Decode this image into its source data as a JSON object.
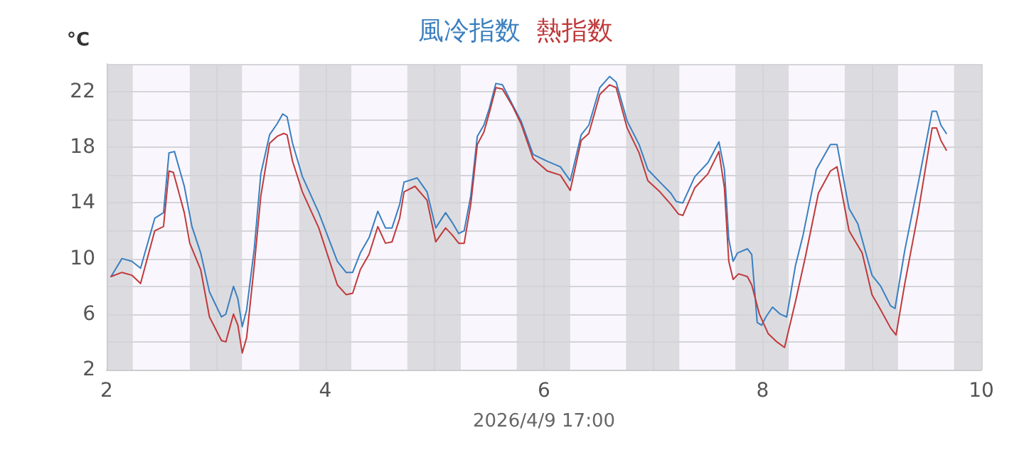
{
  "chart_data": {
    "type": "line",
    "ylabel": "°C",
    "xlabel": "2026/4/9 17:00",
    "legend": "top",
    "grid": true,
    "marker": "none",
    "line_style": "solid",
    "xlim": [
      2,
      10
    ],
    "xticks": [
      2,
      {
        "value": 3,
        "label": null
      },
      4,
      {
        "value": 5,
        "label": null
      },
      6,
      {
        "value": 7,
        "label": null
      },
      8,
      {
        "value": 9,
        "label": null
      },
      10
    ],
    "ylim": [
      2,
      24
    ],
    "yticks": [
      2,
      {
        "value": 4,
        "label": null
      },
      6,
      {
        "value": 8,
        "label": null
      },
      10,
      {
        "value": 12,
        "label": null
      },
      14,
      {
        "value": 16,
        "label": null
      },
      18,
      {
        "value": 20,
        "label": null
      },
      22,
      {
        "value": 24,
        "label": null
      }
    ],
    "bands": [
      {
        "axis": "x",
        "from": 2,
        "to": 2.24,
        "color": "#dcdce0"
      },
      {
        "axis": "x",
        "from": 2.24,
        "to": 2.76,
        "color": "#f9f7fd"
      },
      {
        "axis": "x",
        "from": 2.76,
        "to": 3.24,
        "color": "#dcdce0"
      },
      {
        "axis": "x",
        "from": 3.24,
        "to": 3.76,
        "color": "#f9f7fd"
      },
      {
        "axis": "x",
        "from": 3.76,
        "to": 4.24,
        "color": "#dcdce0"
      },
      {
        "axis": "x",
        "from": 4.24,
        "to": 4.75,
        "color": "#f9f7fd"
      },
      {
        "axis": "x",
        "from": 4.75,
        "to": 5.24,
        "color": "#dcdce0"
      },
      {
        "axis": "x",
        "from": 5.24,
        "to": 5.75,
        "color": "#f9f7fd"
      },
      {
        "axis": "x",
        "from": 5.75,
        "to": 6.24,
        "color": "#dcdce0"
      },
      {
        "axis": "x",
        "from": 6.24,
        "to": 6.75,
        "color": "#f9f7fd"
      },
      {
        "axis": "x",
        "from": 6.75,
        "to": 7.24,
        "color": "#dcdce0"
      },
      {
        "axis": "x",
        "from": 7.24,
        "to": 7.75,
        "color": "#f9f7fd"
      },
      {
        "axis": "x",
        "from": 7.75,
        "to": 8.24,
        "color": "#dcdce0"
      },
      {
        "axis": "x",
        "from": 8.24,
        "to": 8.75,
        "color": "#f9f7fd"
      },
      {
        "axis": "x",
        "from": 8.75,
        "to": 9.24,
        "color": "#dcdce0"
      },
      {
        "axis": "x",
        "from": 9.24,
        "to": 9.75,
        "color": "#f9f7fd"
      },
      {
        "axis": "x",
        "from": 9.75,
        "to": 10,
        "color": "#dcdce0"
      }
    ],
    "series": [
      {
        "name": "風冷指数",
        "color": "#3b7fc0",
        "x": [
          2.04,
          2.14,
          2.23,
          2.31,
          2.44,
          2.52,
          2.57,
          2.62,
          2.71,
          2.78,
          2.86,
          2.94,
          3.05,
          3.09,
          3.16,
          3.2,
          3.24,
          3.28,
          3.35,
          3.41,
          3.49,
          3.56,
          3.61,
          3.65,
          3.7,
          3.79,
          3.94,
          4.11,
          4.19,
          4.25,
          4.32,
          4.4,
          4.48,
          4.55,
          4.61,
          4.68,
          4.72,
          4.84,
          4.93,
          5.01,
          5.1,
          5.16,
          5.22,
          5.27,
          5.33,
          5.39,
          5.45,
          5.5,
          5.56,
          5.62,
          5.71,
          5.79,
          5.9,
          6.03,
          6.15,
          6.24,
          6.34,
          6.41,
          6.51,
          6.6,
          6.66,
          6.76,
          6.87,
          6.95,
          7.06,
          7.16,
          7.21,
          7.27,
          7.38,
          7.5,
          7.6,
          7.65,
          7.69,
          7.73,
          7.77,
          7.86,
          7.9,
          7.95,
          7.99,
          8.03,
          8.09,
          8.16,
          8.22,
          8.3,
          8.37,
          8.49,
          8.62,
          8.68,
          8.79,
          8.87,
          9.0,
          9.08,
          9.17,
          9.21,
          9.3,
          9.42,
          9.55,
          9.59,
          9.63,
          9.68
        ],
        "values": [
          8.7,
          10.0,
          9.8,
          9.3,
          12.9,
          13.3,
          17.6,
          17.7,
          15.2,
          12.3,
          10.4,
          7.6,
          5.8,
          6.0,
          8.0,
          7.1,
          5.1,
          6.3,
          10.7,
          16.1,
          18.9,
          19.7,
          20.4,
          20.2,
          18.3,
          15.9,
          13.3,
          9.8,
          9.0,
          9.0,
          10.4,
          11.5,
          13.4,
          12.2,
          12.2,
          13.9,
          15.5,
          15.8,
          14.8,
          12.2,
          13.3,
          12.6,
          11.8,
          12.0,
          14.5,
          18.8,
          19.6,
          20.8,
          22.6,
          22.5,
          21.1,
          19.9,
          17.5,
          17.0,
          16.6,
          15.6,
          18.9,
          19.6,
          22.3,
          23.1,
          22.7,
          19.9,
          18.2,
          16.4,
          15.5,
          14.7,
          14.1,
          14.0,
          15.9,
          16.9,
          18.4,
          16.4,
          11.4,
          9.8,
          10.4,
          10.7,
          10.3,
          5.4,
          5.2,
          5.8,
          6.5,
          6.0,
          5.8,
          9.5,
          11.7,
          16.4,
          18.2,
          18.2,
          13.6,
          12.5,
          8.8,
          8.0,
          6.6,
          6.4,
          10.6,
          15.3,
          20.6,
          20.6,
          19.6,
          19.0
        ]
      },
      {
        "name": "熱指数",
        "color": "#c0393b",
        "x": [
          2.04,
          2.14,
          2.23,
          2.31,
          2.44,
          2.52,
          2.57,
          2.61,
          2.71,
          2.76,
          2.86,
          2.94,
          3.05,
          3.09,
          3.16,
          3.2,
          3.24,
          3.28,
          3.35,
          3.41,
          3.49,
          3.56,
          3.62,
          3.65,
          3.7,
          3.79,
          3.94,
          4.11,
          4.19,
          4.25,
          4.32,
          4.4,
          4.48,
          4.55,
          4.61,
          4.68,
          4.72,
          4.82,
          4.93,
          5.01,
          5.1,
          5.16,
          5.22,
          5.27,
          5.33,
          5.39,
          5.45,
          5.5,
          5.56,
          5.62,
          5.71,
          5.79,
          5.9,
          6.03,
          6.15,
          6.24,
          6.34,
          6.41,
          6.51,
          6.6,
          6.66,
          6.76,
          6.87,
          6.95,
          7.06,
          7.16,
          7.23,
          7.27,
          7.38,
          7.5,
          7.6,
          7.65,
          7.69,
          7.73,
          7.78,
          7.86,
          7.9,
          7.97,
          8.05,
          8.13,
          8.2,
          8.3,
          8.39,
          8.51,
          8.62,
          8.68,
          8.79,
          8.91,
          9.0,
          9.08,
          9.17,
          9.22,
          9.3,
          9.42,
          9.55,
          9.59,
          9.63,
          9.68
        ],
        "values": [
          8.7,
          9.0,
          8.8,
          8.2,
          12.0,
          12.3,
          16.3,
          16.2,
          13.3,
          11.1,
          9.2,
          5.8,
          4.1,
          4.0,
          6.0,
          5.2,
          3.2,
          4.3,
          9.5,
          14.5,
          18.3,
          18.8,
          19.0,
          18.9,
          17.0,
          14.8,
          12.2,
          8.1,
          7.4,
          7.5,
          9.2,
          10.3,
          12.3,
          11.1,
          11.2,
          12.9,
          14.8,
          15.2,
          14.2,
          11.2,
          12.2,
          11.7,
          11.1,
          11.1,
          13.9,
          18.2,
          19.1,
          20.5,
          22.3,
          22.2,
          21.0,
          19.7,
          17.2,
          16.3,
          16.0,
          14.9,
          18.5,
          19.0,
          21.8,
          22.5,
          22.3,
          19.4,
          17.6,
          15.6,
          14.8,
          13.9,
          13.2,
          13.1,
          15.1,
          16.1,
          17.7,
          15.1,
          9.8,
          8.5,
          8.9,
          8.7,
          8.1,
          6.0,
          4.6,
          4.0,
          3.6,
          6.9,
          10.1,
          14.7,
          16.3,
          16.6,
          12.0,
          10.4,
          7.4,
          6.3,
          5.0,
          4.5,
          8.2,
          13.2,
          19.4,
          19.4,
          18.5,
          17.8
        ]
      }
    ]
  }
}
